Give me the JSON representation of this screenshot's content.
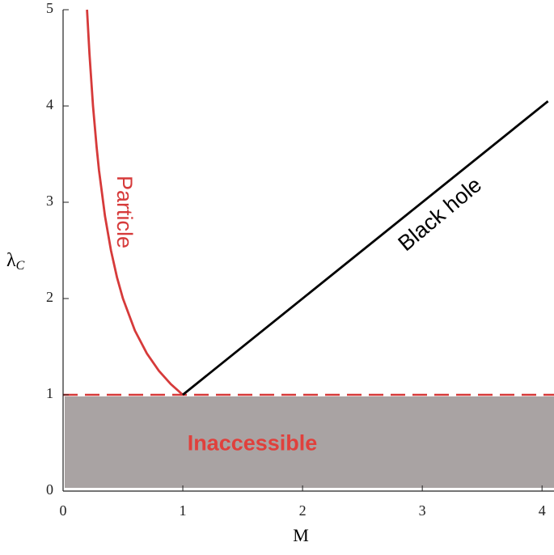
{
  "chart_data": {
    "type": "line",
    "xlabel": "M",
    "ylabel": {
      "symbol": "λ",
      "subscript": "C"
    },
    "xlim": [
      0,
      4.1
    ],
    "ylim": [
      0,
      5
    ],
    "xticks": [
      0,
      1,
      2,
      3,
      4
    ],
    "yticks": [
      0,
      1,
      2,
      3,
      4,
      5
    ],
    "series": [
      {
        "name": "Particle",
        "color": "#d63a3a",
        "x": [
          0.2,
          0.22,
          0.25,
          0.28,
          0.3,
          0.35,
          0.4,
          0.45,
          0.5,
          0.6,
          0.7,
          0.8,
          0.9,
          1
        ],
        "values": [
          5,
          4.545,
          4,
          3.571,
          3.333,
          2.857,
          2.5,
          2.222,
          2,
          1.667,
          1.429,
          1.25,
          1.111,
          1
        ]
      },
      {
        "name": "Black hole",
        "color": "#000000",
        "x": [
          1,
          4.05
        ],
        "values": [
          1,
          4.05
        ]
      }
    ],
    "hline": {
      "value": 1,
      "color": "#d63a3a",
      "dashed": true
    },
    "region": {
      "label": "Inaccessible",
      "ylim": [
        0,
        1
      ],
      "color": "#a9a3a3",
      "label_color": "#e0403c"
    }
  }
}
